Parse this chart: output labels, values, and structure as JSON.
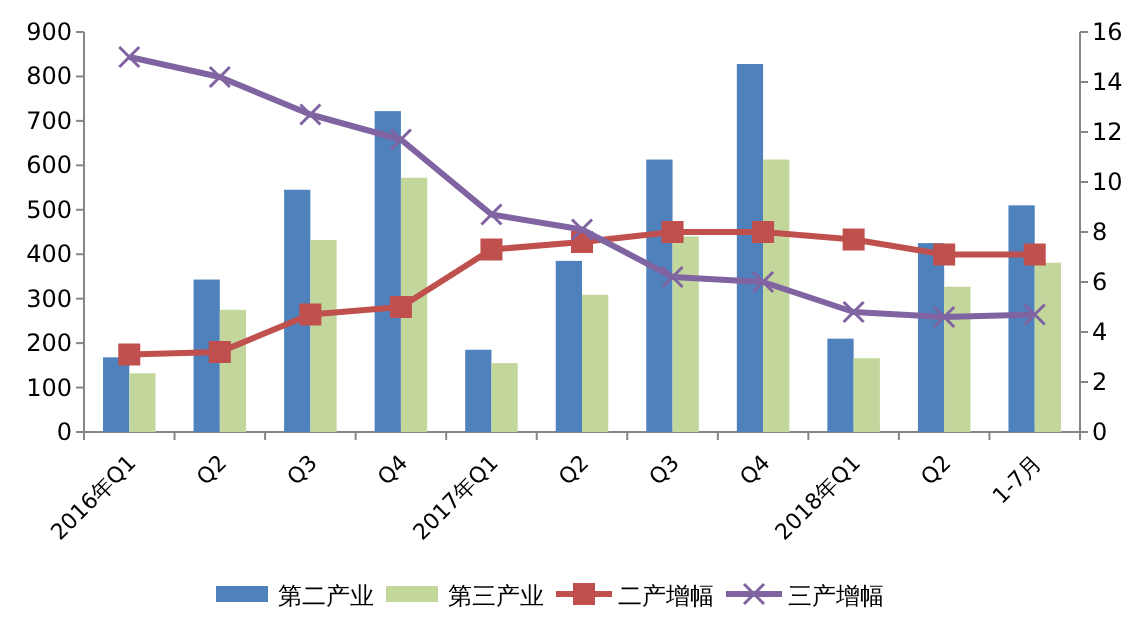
{
  "chart_data": {
    "type": "bar",
    "categories": [
      "2016年Q1",
      "Q2",
      "Q3",
      "Q4",
      "2017年Q1",
      "Q2",
      "Q3",
      "Q4",
      "2018年Q1",
      "Q2",
      "1-7月"
    ],
    "series": [
      {
        "name": "第二产业",
        "color": "#4f81bd",
        "values": [
          168,
          343,
          545,
          722,
          185,
          385,
          613,
          828,
          210,
          425,
          510
        ]
      },
      {
        "name": "第三产业",
        "color": "#c3d69b",
        "values": [
          132,
          275,
          432,
          572,
          155,
          309,
          440,
          613,
          166,
          327,
          381
        ]
      },
      {
        "name": "二产增幅",
        "type": "line",
        "axis": "y2",
        "marker": "square",
        "color": "#c0504d",
        "values": [
          3.1,
          3.2,
          4.7,
          5.0,
          7.3,
          7.6,
          8.0,
          8.0,
          7.7,
          7.1,
          7.1
        ]
      },
      {
        "name": "三产增幅",
        "type": "line",
        "axis": "y2",
        "marker": "cross",
        "color": "#8064a2",
        "values": [
          15.0,
          14.2,
          12.7,
          11.7,
          8.7,
          8.1,
          6.2,
          6.0,
          4.8,
          4.6,
          4.7
        ]
      }
    ],
    "ylim": [
      0,
      900
    ],
    "yticks": [
      0,
      100,
      200,
      300,
      400,
      500,
      600,
      700,
      800,
      900
    ],
    "y2lim": [
      0,
      16
    ],
    "y2ticks": [
      0,
      2,
      4,
      6,
      8,
      10,
      12,
      14,
      16
    ],
    "grid": false,
    "legend": "bottom"
  }
}
